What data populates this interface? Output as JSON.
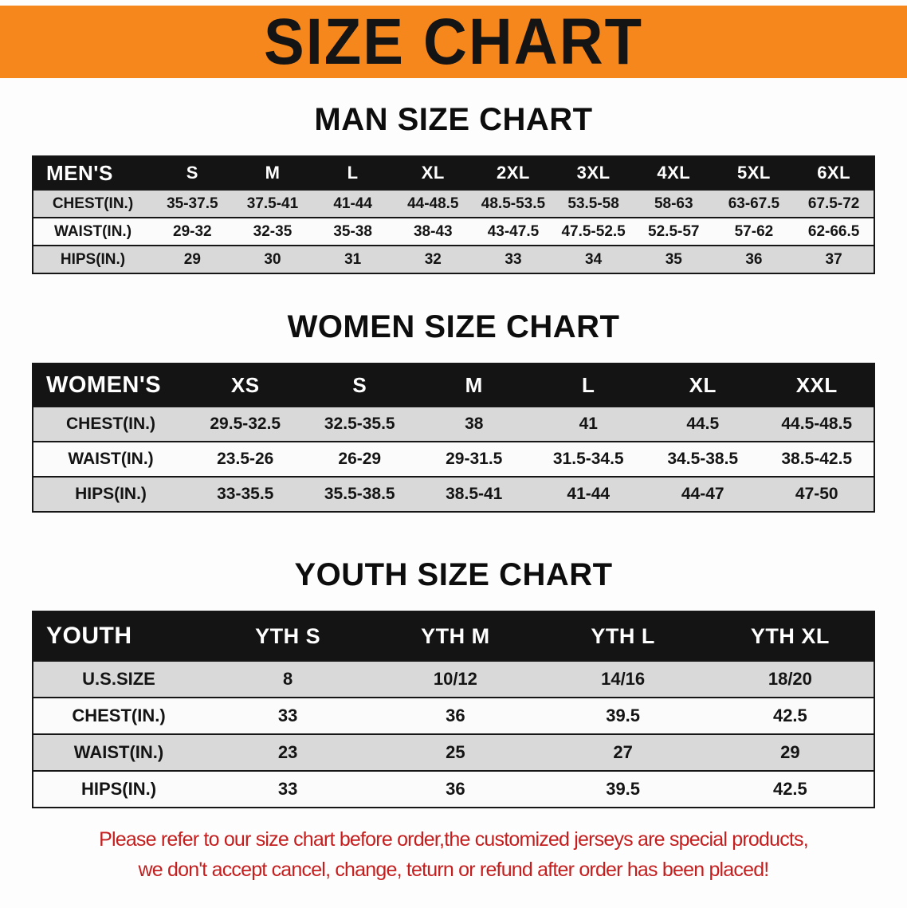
{
  "banner": {
    "title": "SIZE CHART"
  },
  "colors": {
    "banner_bg": "#f6871c",
    "table_header_bg": "#141414",
    "row_alt_bg": "#d9d9d9",
    "note_color": "#c41e1e"
  },
  "men": {
    "heading": "MAN SIZE CHART",
    "table": {
      "label": "MEN'S",
      "columns": [
        "S",
        "M",
        "L",
        "XL",
        "2XL",
        "3XL",
        "4XL",
        "5XL",
        "6XL"
      ],
      "rows": [
        {
          "label": "CHEST(IN.)",
          "values": [
            "35-37.5",
            "37.5-41",
            "41-44",
            "44-48.5",
            "48.5-53.5",
            "53.5-58",
            "58-63",
            "63-67.5",
            "67.5-72"
          ]
        },
        {
          "label": "WAIST(IN.)",
          "values": [
            "29-32",
            "32-35",
            "35-38",
            "38-43",
            "43-47.5",
            "47.5-52.5",
            "52.5-57",
            "57-62",
            "62-66.5"
          ]
        },
        {
          "label": "HIPS(IN.)",
          "values": [
            "29",
            "30",
            "31",
            "32",
            "33",
            "34",
            "35",
            "36",
            "37"
          ]
        }
      ]
    }
  },
  "women": {
    "heading": "WOMEN SIZE CHART",
    "table": {
      "label": "WOMEN'S",
      "columns": [
        "XS",
        "S",
        "M",
        "L",
        "XL",
        "XXL"
      ],
      "rows": [
        {
          "label": "CHEST(IN.)",
          "values": [
            "29.5-32.5",
            "32.5-35.5",
            "38",
            "41",
            "44.5",
            "44.5-48.5"
          ]
        },
        {
          "label": "WAIST(IN.)",
          "values": [
            "23.5-26",
            "26-29",
            "29-31.5",
            "31.5-34.5",
            "34.5-38.5",
            "38.5-42.5"
          ]
        },
        {
          "label": "HIPS(IN.)",
          "values": [
            "33-35.5",
            "35.5-38.5",
            "38.5-41",
            "41-44",
            "44-47",
            "47-50"
          ]
        }
      ]
    }
  },
  "youth": {
    "heading": "YOUTH SIZE CHART",
    "table": {
      "label": "YOUTH",
      "columns": [
        "YTH S",
        "YTH M",
        "YTH L",
        "YTH XL"
      ],
      "rows": [
        {
          "label": "U.S.SIZE",
          "values": [
            "8",
            "10/12",
            "14/16",
            "18/20"
          ]
        },
        {
          "label": "CHEST(IN.)",
          "values": [
            "33",
            "36",
            "39.5",
            "42.5"
          ]
        },
        {
          "label": "WAIST(IN.)",
          "values": [
            "23",
            "25",
            "27",
            "29"
          ]
        },
        {
          "label": "HIPS(IN.)",
          "values": [
            "33",
            "36",
            "39.5",
            "42.5"
          ]
        }
      ]
    }
  },
  "note": {
    "line1": "Please refer to our size chart before order,the customized jerseys are special products,",
    "line2": "we don't accept cancel, change, teturn or refund after order has been placed!"
  }
}
